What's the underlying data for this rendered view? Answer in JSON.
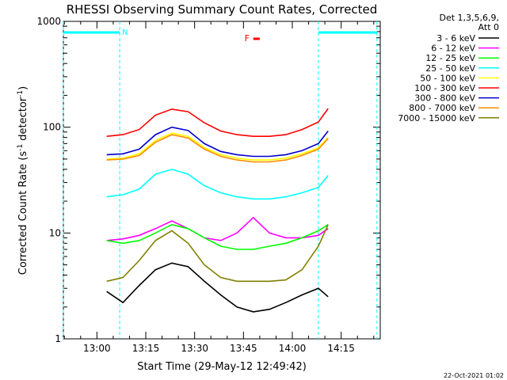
{
  "chart_data": {
    "type": "line",
    "title": "RHESSI Observing Summary Count Rates, Corrected",
    "xlabel": "Start Time (29-May-12 12:49:42)",
    "ylabel_main": "Corrected Count Rate (s",
    "ylabel_sup1": "-1",
    "ylabel_mid": " detector",
    "ylabel_sup2": "-1",
    "ylabel_end": ")",
    "yscale": "log",
    "ylim": [
      1,
      1000
    ],
    "xlim": [
      "12:49:42",
      "14:27:00"
    ],
    "x_ticks": [
      "13:00",
      "13:15",
      "13:30",
      "13:45",
      "14:00",
      "14:15"
    ],
    "y_ticks": [
      "1",
      "10",
      "100",
      "1000"
    ],
    "legend_header": [
      "Det 1,3,5,6,9,",
      "Att 0"
    ],
    "legend_position": "right",
    "flags": {
      "N": {
        "label": "N",
        "color": "#00ffff",
        "ranges": [
          [
            "12:49:42",
            "13:07:00"
          ],
          [
            "14:08:00",
            "14:26:00"
          ]
        ]
      },
      "F": {
        "label": "F",
        "color": "#ff0000",
        "ranges": [
          [
            "13:48:00",
            "13:50:00"
          ]
        ]
      }
    },
    "series": [
      {
        "name": "3 - 6 keV",
        "color": "#000000",
        "x": [
          "13:03",
          "13:08",
          "13:13",
          "13:18",
          "13:23",
          "13:28",
          "13:33",
          "13:38",
          "13:43",
          "13:48",
          "13:53",
          "13:58",
          "14:03",
          "14:08",
          "14:11"
        ],
        "values": [
          2.8,
          2.2,
          3.2,
          4.5,
          5.2,
          4.8,
          3.5,
          2.6,
          2.0,
          1.8,
          1.9,
          2.2,
          2.6,
          3.0,
          2.5
        ]
      },
      {
        "name": "6 - 12 keV",
        "color": "#ff00ff",
        "x": [
          "13:03",
          "13:08",
          "13:13",
          "13:18",
          "13:23",
          "13:28",
          "13:33",
          "13:38",
          "13:43",
          "13:48",
          "13:53",
          "13:58",
          "14:03",
          "14:08",
          "14:11"
        ],
        "values": [
          8.5,
          8.8,
          9.5,
          11,
          13,
          11,
          9,
          8.5,
          10,
          14,
          10,
          9,
          9,
          9.5,
          11
        ]
      },
      {
        "name": "12 - 25 keV",
        "color": "#00ff00",
        "x": [
          "13:03",
          "13:08",
          "13:13",
          "13:18",
          "13:23",
          "13:28",
          "13:33",
          "13:38",
          "13:43",
          "13:48",
          "13:53",
          "13:58",
          "14:03",
          "14:08",
          "14:11"
        ],
        "values": [
          8.5,
          8.0,
          8.5,
          10,
          12,
          11,
          9,
          7.5,
          7.0,
          7.0,
          7.5,
          8.0,
          9.0,
          10.5,
          12
        ]
      },
      {
        "name": "25 - 50 keV",
        "color": "#00ffff",
        "x": [
          "13:03",
          "13:08",
          "13:13",
          "13:18",
          "13:23",
          "13:28",
          "13:33",
          "13:38",
          "13:43",
          "13:48",
          "13:53",
          "13:58",
          "14:03",
          "14:08",
          "14:11"
        ],
        "values": [
          22,
          23,
          26,
          36,
          40,
          36,
          28,
          24,
          22,
          21,
          21,
          22,
          24,
          27,
          35
        ]
      },
      {
        "name": "50 - 100 keV",
        "color": "#ffff00",
        "x": [
          "13:03",
          "13:08",
          "13:13",
          "13:18",
          "13:23",
          "13:28",
          "13:33",
          "13:38",
          "13:43",
          "13:48",
          "13:53",
          "13:58",
          "14:03",
          "14:08",
          "14:11"
        ],
        "values": [
          50,
          51,
          56,
          75,
          88,
          82,
          64,
          55,
          51,
          49,
          49,
          51,
          56,
          64,
          80
        ]
      },
      {
        "name": "100 - 300 keV",
        "color": "#ff0000",
        "x": [
          "13:03",
          "13:08",
          "13:13",
          "13:18",
          "13:23",
          "13:28",
          "13:33",
          "13:38",
          "13:43",
          "13:48",
          "13:53",
          "13:58",
          "14:03",
          "14:08",
          "14:11"
        ],
        "values": [
          82,
          85,
          95,
          130,
          148,
          140,
          110,
          92,
          85,
          82,
          82,
          85,
          95,
          112,
          150
        ]
      },
      {
        "name": "300 - 800 keV",
        "color": "#0000cc",
        "x": [
          "13:03",
          "13:08",
          "13:13",
          "13:18",
          "13:23",
          "13:28",
          "13:33",
          "13:38",
          "13:43",
          "13:48",
          "13:53",
          "13:58",
          "14:03",
          "14:08",
          "14:11"
        ],
        "values": [
          55,
          56,
          62,
          85,
          100,
          93,
          70,
          59,
          55,
          53,
          53,
          55,
          60,
          70,
          92
        ]
      },
      {
        "name": "800 - 7000 keV",
        "color": "#ff8c00",
        "x": [
          "13:03",
          "13:08",
          "13:13",
          "13:18",
          "13:23",
          "13:28",
          "13:33",
          "13:38",
          "13:43",
          "13:48",
          "13:53",
          "13:58",
          "14:03",
          "14:08",
          "14:11"
        ],
        "values": [
          49,
          50,
          54,
          72,
          85,
          79,
          62,
          53,
          49,
          47,
          47,
          49,
          54,
          62,
          78
        ]
      },
      {
        "name": "7000 - 15000 keV",
        "color": "#808000",
        "x": [
          "13:03",
          "13:08",
          "13:13",
          "13:18",
          "13:23",
          "13:28",
          "13:33",
          "13:38",
          "13:43",
          "13:48",
          "13:53",
          "13:58",
          "14:03",
          "14:08",
          "14:11"
        ],
        "values": [
          3.5,
          3.8,
          5.5,
          8.5,
          10.5,
          8.0,
          5.0,
          3.8,
          3.5,
          3.5,
          3.5,
          3.6,
          4.5,
          7.5,
          12
        ]
      }
    ],
    "footer_timestamp": "22-Oct-2021 01:02"
  }
}
